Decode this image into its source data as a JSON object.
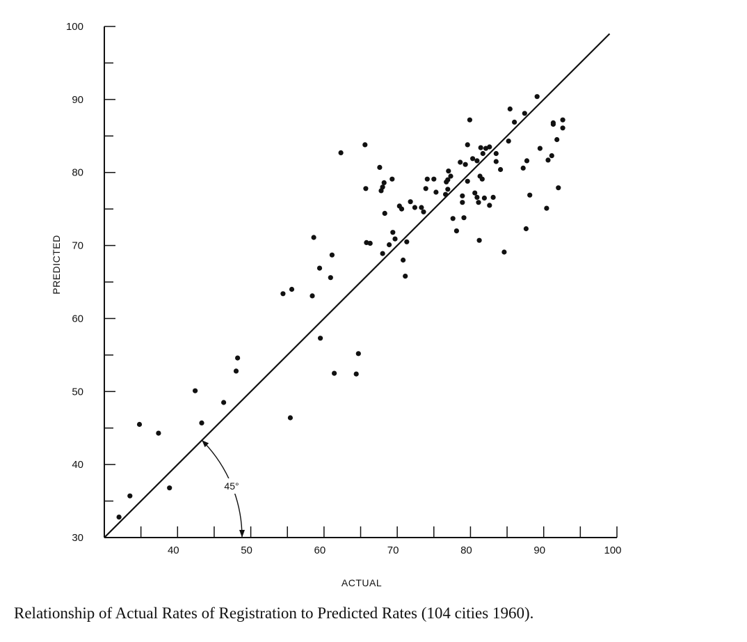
{
  "caption": "Relationship of Actual Rates of Registration to Predicted Rates (104 cities 1960).",
  "chart_data": {
    "type": "scatter",
    "title": "Relationship of Actual Rates of Registration to Predicted Rates (104 cities 1960).",
    "xlabel": "ACTUAL",
    "ylabel": "PREDICTED",
    "xlim": [
      30,
      100
    ],
    "ylim": [
      30,
      100
    ],
    "x_ticks": [
      40,
      50,
      60,
      70,
      80,
      90,
      100
    ],
    "x_tick_labels": [
      "40",
      "50",
      "60",
      "70",
      "80",
      "90",
      "100"
    ],
    "y_ticks": [
      30,
      40,
      50,
      60,
      70,
      80,
      90,
      100
    ],
    "y_tick_labels": [
      "30",
      "40",
      "50",
      "60",
      "70",
      "80",
      "90",
      "100"
    ],
    "reference_line": {
      "from": [
        30,
        30
      ],
      "to": [
        99,
        99
      ],
      "label": "45-degree line"
    },
    "angle_annotation": {
      "label": "45°",
      "vertex": [
        30,
        30
      ],
      "degrees": 45
    },
    "series": [
      {
        "name": "cities",
        "points": [
          [
            32.0,
            32.8
          ],
          [
            33.5,
            35.7
          ],
          [
            34.8,
            45.5
          ],
          [
            37.4,
            44.3
          ],
          [
            38.9,
            36.8
          ],
          [
            42.4,
            50.1
          ],
          [
            43.3,
            45.7
          ],
          [
            46.3,
            48.5
          ],
          [
            48.0,
            52.8
          ],
          [
            48.2,
            54.6
          ],
          [
            54.4,
            63.4
          ],
          [
            55.4,
            46.4
          ],
          [
            55.6,
            64.0
          ],
          [
            58.4,
            63.1
          ],
          [
            58.6,
            71.1
          ],
          [
            59.4,
            66.9
          ],
          [
            59.5,
            57.3
          ],
          [
            60.9,
            65.6
          ],
          [
            61.1,
            68.7
          ],
          [
            61.4,
            52.5
          ],
          [
            62.3,
            82.7
          ],
          [
            64.4,
            52.4
          ],
          [
            64.7,
            55.2
          ],
          [
            65.6,
            83.8
          ],
          [
            65.7,
            77.8
          ],
          [
            65.8,
            70.4
          ],
          [
            66.3,
            70.3
          ],
          [
            67.6,
            80.7
          ],
          [
            67.8,
            77.5
          ],
          [
            68.0,
            78.0
          ],
          [
            68.2,
            78.6
          ],
          [
            68.0,
            68.9
          ],
          [
            68.3,
            74.4
          ],
          [
            68.9,
            70.1
          ],
          [
            69.4,
            71.8
          ],
          [
            69.3,
            79.1
          ],
          [
            69.7,
            70.9
          ],
          [
            70.3,
            75.4
          ],
          [
            70.6,
            75.0
          ],
          [
            70.8,
            68.0
          ],
          [
            71.1,
            65.8
          ],
          [
            71.3,
            70.5
          ],
          [
            71.8,
            76.0
          ],
          [
            72.4,
            75.2
          ],
          [
            73.3,
            75.2
          ],
          [
            73.6,
            74.6
          ],
          [
            73.9,
            77.8
          ],
          [
            74.1,
            79.1
          ],
          [
            75.0,
            79.1
          ],
          [
            75.3,
            77.3
          ],
          [
            76.6,
            77.0
          ],
          [
            76.7,
            78.7
          ],
          [
            76.9,
            77.7
          ],
          [
            76.9,
            79.0
          ],
          [
            77.0,
            80.2
          ],
          [
            77.3,
            79.5
          ],
          [
            77.6,
            73.7
          ],
          [
            78.1,
            72.0
          ],
          [
            78.6,
            81.4
          ],
          [
            78.9,
            75.9
          ],
          [
            78.9,
            76.8
          ],
          [
            79.1,
            73.8
          ],
          [
            79.3,
            81.1
          ],
          [
            79.6,
            78.8
          ],
          [
            79.6,
            83.8
          ],
          [
            79.9,
            87.2
          ],
          [
            80.3,
            81.9
          ],
          [
            80.6,
            77.2
          ],
          [
            80.9,
            76.6
          ],
          [
            80.9,
            81.6
          ],
          [
            81.1,
            75.9
          ],
          [
            81.2,
            70.7
          ],
          [
            81.3,
            79.5
          ],
          [
            81.4,
            83.4
          ],
          [
            81.7,
            82.6
          ],
          [
            81.9,
            76.5
          ],
          [
            81.6,
            79.1
          ],
          [
            82.1,
            83.3
          ],
          [
            82.6,
            83.5
          ],
          [
            82.6,
            75.5
          ],
          [
            83.1,
            76.6
          ],
          [
            83.5,
            81.5
          ],
          [
            83.5,
            82.6
          ],
          [
            84.1,
            80.4
          ],
          [
            84.6,
            69.1
          ],
          [
            85.2,
            84.3
          ],
          [
            85.4,
            88.7
          ],
          [
            86.0,
            86.9
          ],
          [
            87.2,
            80.6
          ],
          [
            87.4,
            88.1
          ],
          [
            87.6,
            72.3
          ],
          [
            87.7,
            81.6
          ],
          [
            88.1,
            76.9
          ],
          [
            89.1,
            90.4
          ],
          [
            89.5,
            83.3
          ],
          [
            90.4,
            75.1
          ],
          [
            90.6,
            81.7
          ],
          [
            91.1,
            82.3
          ],
          [
            91.3,
            86.6
          ],
          [
            91.8,
            84.5
          ],
          [
            92.0,
            77.9
          ],
          [
            92.6,
            87.2
          ],
          [
            92.6,
            86.1
          ],
          [
            91.3,
            86.8
          ]
        ]
      }
    ]
  }
}
